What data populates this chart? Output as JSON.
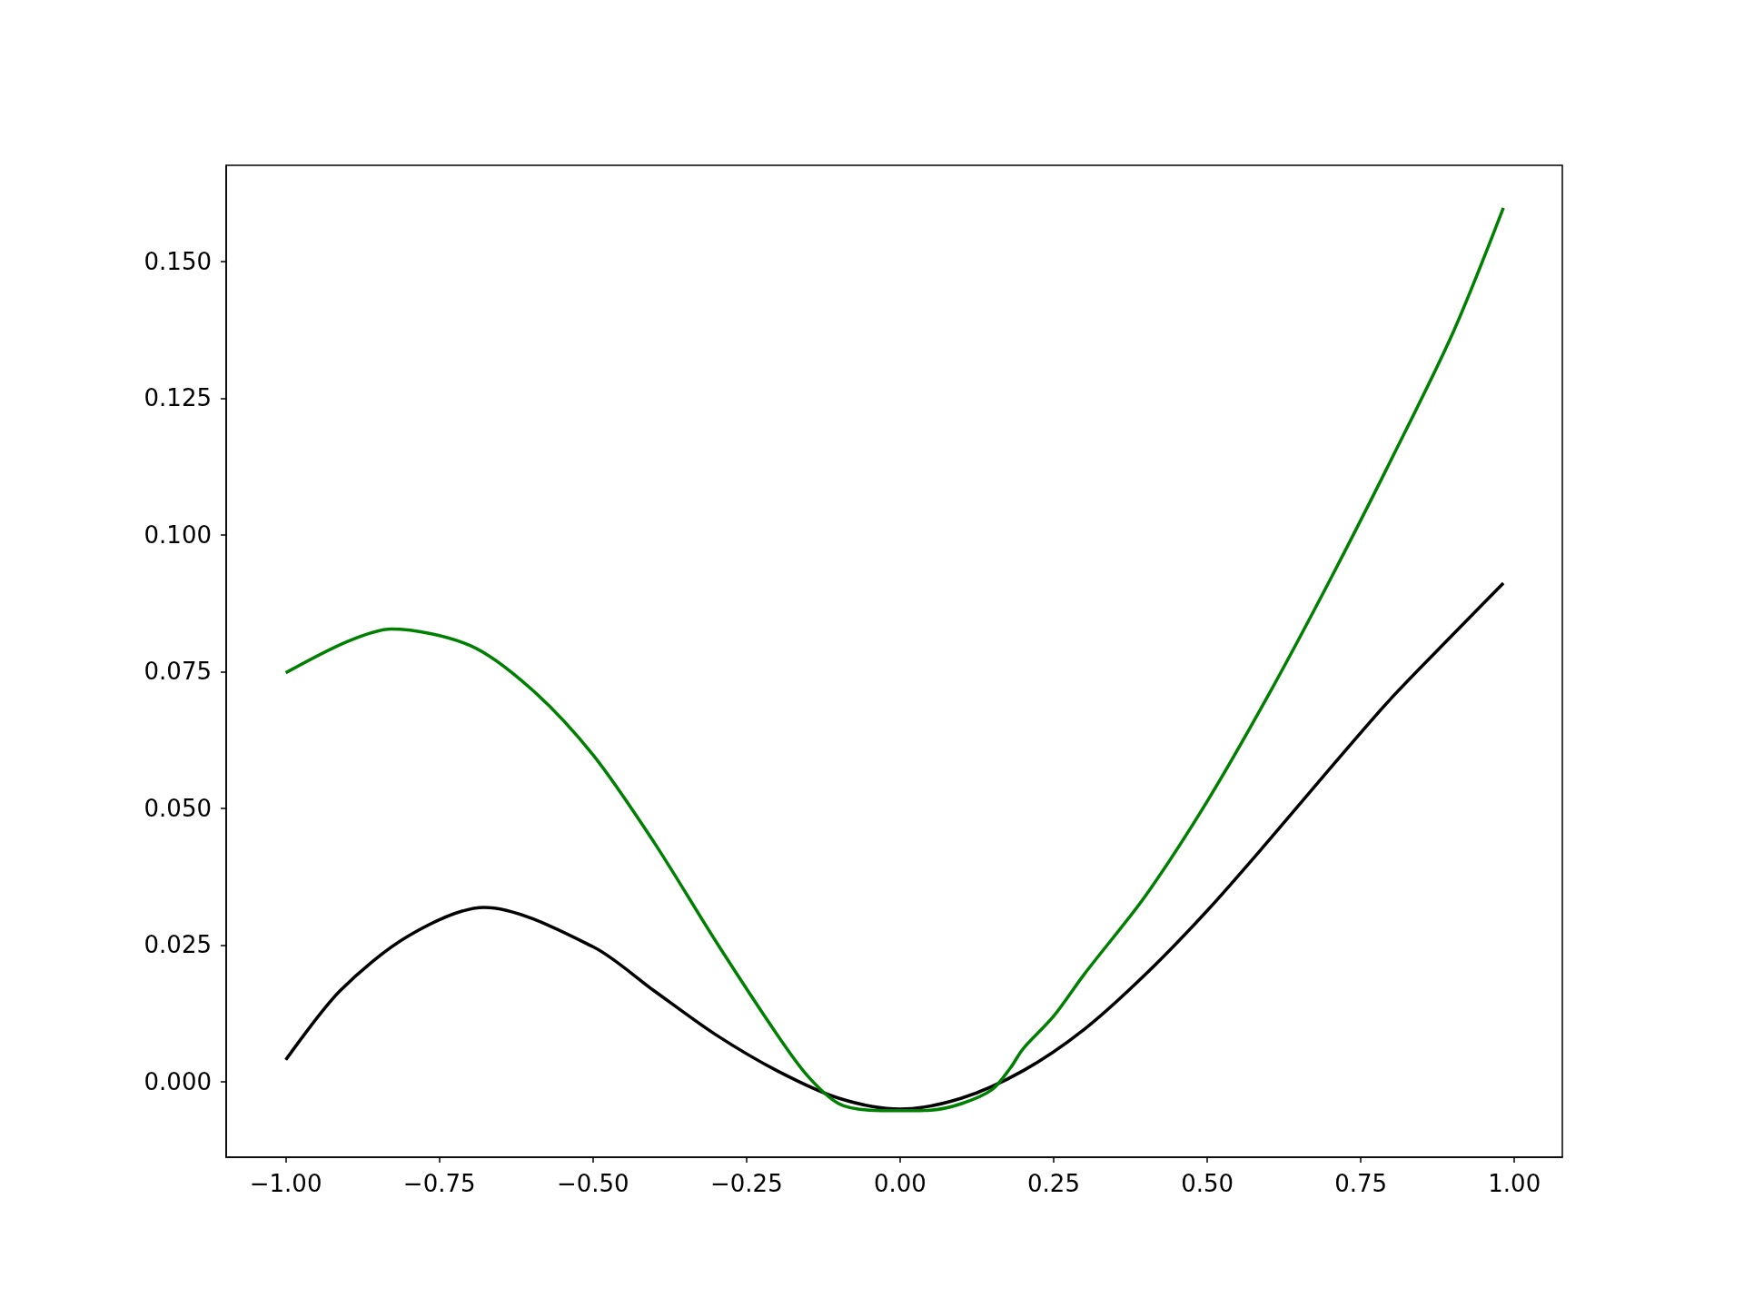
{
  "chart_data": {
    "type": "line",
    "marker": "none",
    "line_style": "solid",
    "grid": false,
    "xlim": [
      -1.097,
      1.078
    ],
    "ylim": [
      -0.0138,
      0.1676
    ],
    "xticks": [
      {
        "value": -1,
        "label": "−1.00"
      },
      {
        "value": -0.75,
        "label": "−0.75"
      },
      {
        "value": -0.5,
        "label": "−0.50"
      },
      {
        "value": -0.25,
        "label": "−0.25"
      },
      {
        "value": 0,
        "label": "0.00"
      },
      {
        "value": 0.25,
        "label": "0.25"
      },
      {
        "value": 0.5,
        "label": "0.50"
      },
      {
        "value": 0.75,
        "label": "0.75"
      },
      {
        "value": 1,
        "label": "1.00"
      }
    ],
    "yticks": [
      {
        "value": 0,
        "label": "0.000"
      },
      {
        "value": 0.025,
        "label": "0.025"
      },
      {
        "value": 0.05,
        "label": "0.050"
      },
      {
        "value": 0.075,
        "label": "0.075"
      },
      {
        "value": 0.1,
        "label": "0.100"
      },
      {
        "value": 0.125,
        "label": "0.125"
      },
      {
        "value": 0.15,
        "label": "0.150"
      }
    ],
    "series": [
      {
        "color": "#000000",
        "x": [
          -1,
          -0.912,
          -0.8,
          -0.677,
          -0.5,
          -0.4,
          -0.3,
          -0.2,
          -0.1,
          0,
          0.1,
          0.2,
          0.3,
          0.4,
          0.5,
          0.6,
          0.7,
          0.8,
          0.9,
          0.982
        ],
        "values": [
          0.004,
          0.0166,
          0.0267,
          0.0319,
          0.0247,
          0.0166,
          0.0086,
          0.002,
          -0.003,
          -0.005,
          -0.003,
          0.002,
          0.0096,
          0.0197,
          0.0313,
          0.0441,
          0.0573,
          0.0702,
          0.0818,
          0.0912
        ]
      },
      {
        "color": "#008000",
        "x": [
          -1,
          -0.9,
          -0.828,
          -0.7,
          -0.6,
          -0.5,
          -0.4,
          -0.3,
          -0.2,
          -0.15,
          -0.1,
          -0.05,
          0,
          0.05,
          0.1,
          0.15,
          0.18,
          0.2,
          0.25,
          0.3,
          0.4,
          0.5,
          0.6,
          0.7,
          0.8,
          0.9,
          0.982
        ],
        "values": [
          0.0748,
          0.0805,
          0.0828,
          0.0798,
          0.0718,
          0.0598,
          0.0437,
          0.0257,
          0.0086,
          0.001,
          -0.004,
          -0.0052,
          -0.0053,
          -0.0052,
          -0.004,
          -0.0014,
          0.0026,
          0.006,
          0.012,
          0.0197,
          0.0341,
          0.0513,
          0.0708,
          0.0918,
          0.1139,
          0.137,
          0.1598
        ]
      }
    ]
  }
}
